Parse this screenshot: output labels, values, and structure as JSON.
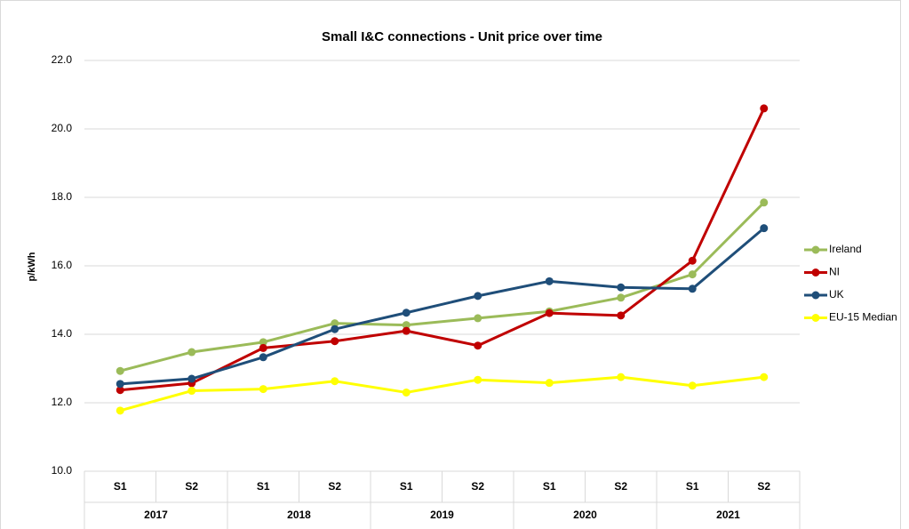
{
  "chart_data": {
    "type": "line",
    "title": "Small I&C connections - Unit price over time",
    "y_label": "p/kWh",
    "categories": [
      "S1",
      "S2",
      "S1",
      "S2",
      "S1",
      "S2",
      "S1",
      "S2",
      "S1",
      "S2"
    ],
    "category_groups": [
      "2017",
      "2018",
      "2019",
      "2020",
      "2021"
    ],
    "series": [
      {
        "name": "Ireland",
        "color": "#9bbb59",
        "values": [
          12.93,
          13.48,
          13.77,
          14.32,
          14.27,
          14.47,
          14.67,
          15.07,
          15.75,
          17.85
        ]
      },
      {
        "name": "NI",
        "color": "#c00000",
        "values": [
          12.37,
          12.57,
          13.6,
          13.8,
          14.1,
          13.67,
          14.62,
          14.55,
          16.15,
          20.6
        ]
      },
      {
        "name": "UK",
        "color": "#1f4e79",
        "values": [
          12.55,
          12.7,
          13.33,
          14.15,
          14.63,
          15.12,
          15.55,
          15.37,
          15.33,
          17.1
        ]
      },
      {
        "name": "EU-15 Median",
        "color": "#ffff00",
        "values": [
          11.77,
          12.35,
          12.4,
          12.63,
          12.3,
          12.67,
          12.58,
          12.75,
          12.5,
          12.75
        ]
      }
    ],
    "ylim": [
      10,
      22
    ],
    "yticks": [
      {
        "value": 10,
        "label": "10.0"
      },
      {
        "value": 12,
        "label": "12.0"
      },
      {
        "value": 14,
        "label": "14.0"
      },
      {
        "value": 16,
        "label": "16.0"
      },
      {
        "value": 18,
        "label": "18.0"
      },
      {
        "value": 20,
        "label": "20.0"
      },
      {
        "value": 22,
        "label": "22.0"
      }
    ],
    "grid": true,
    "legend": "right"
  }
}
